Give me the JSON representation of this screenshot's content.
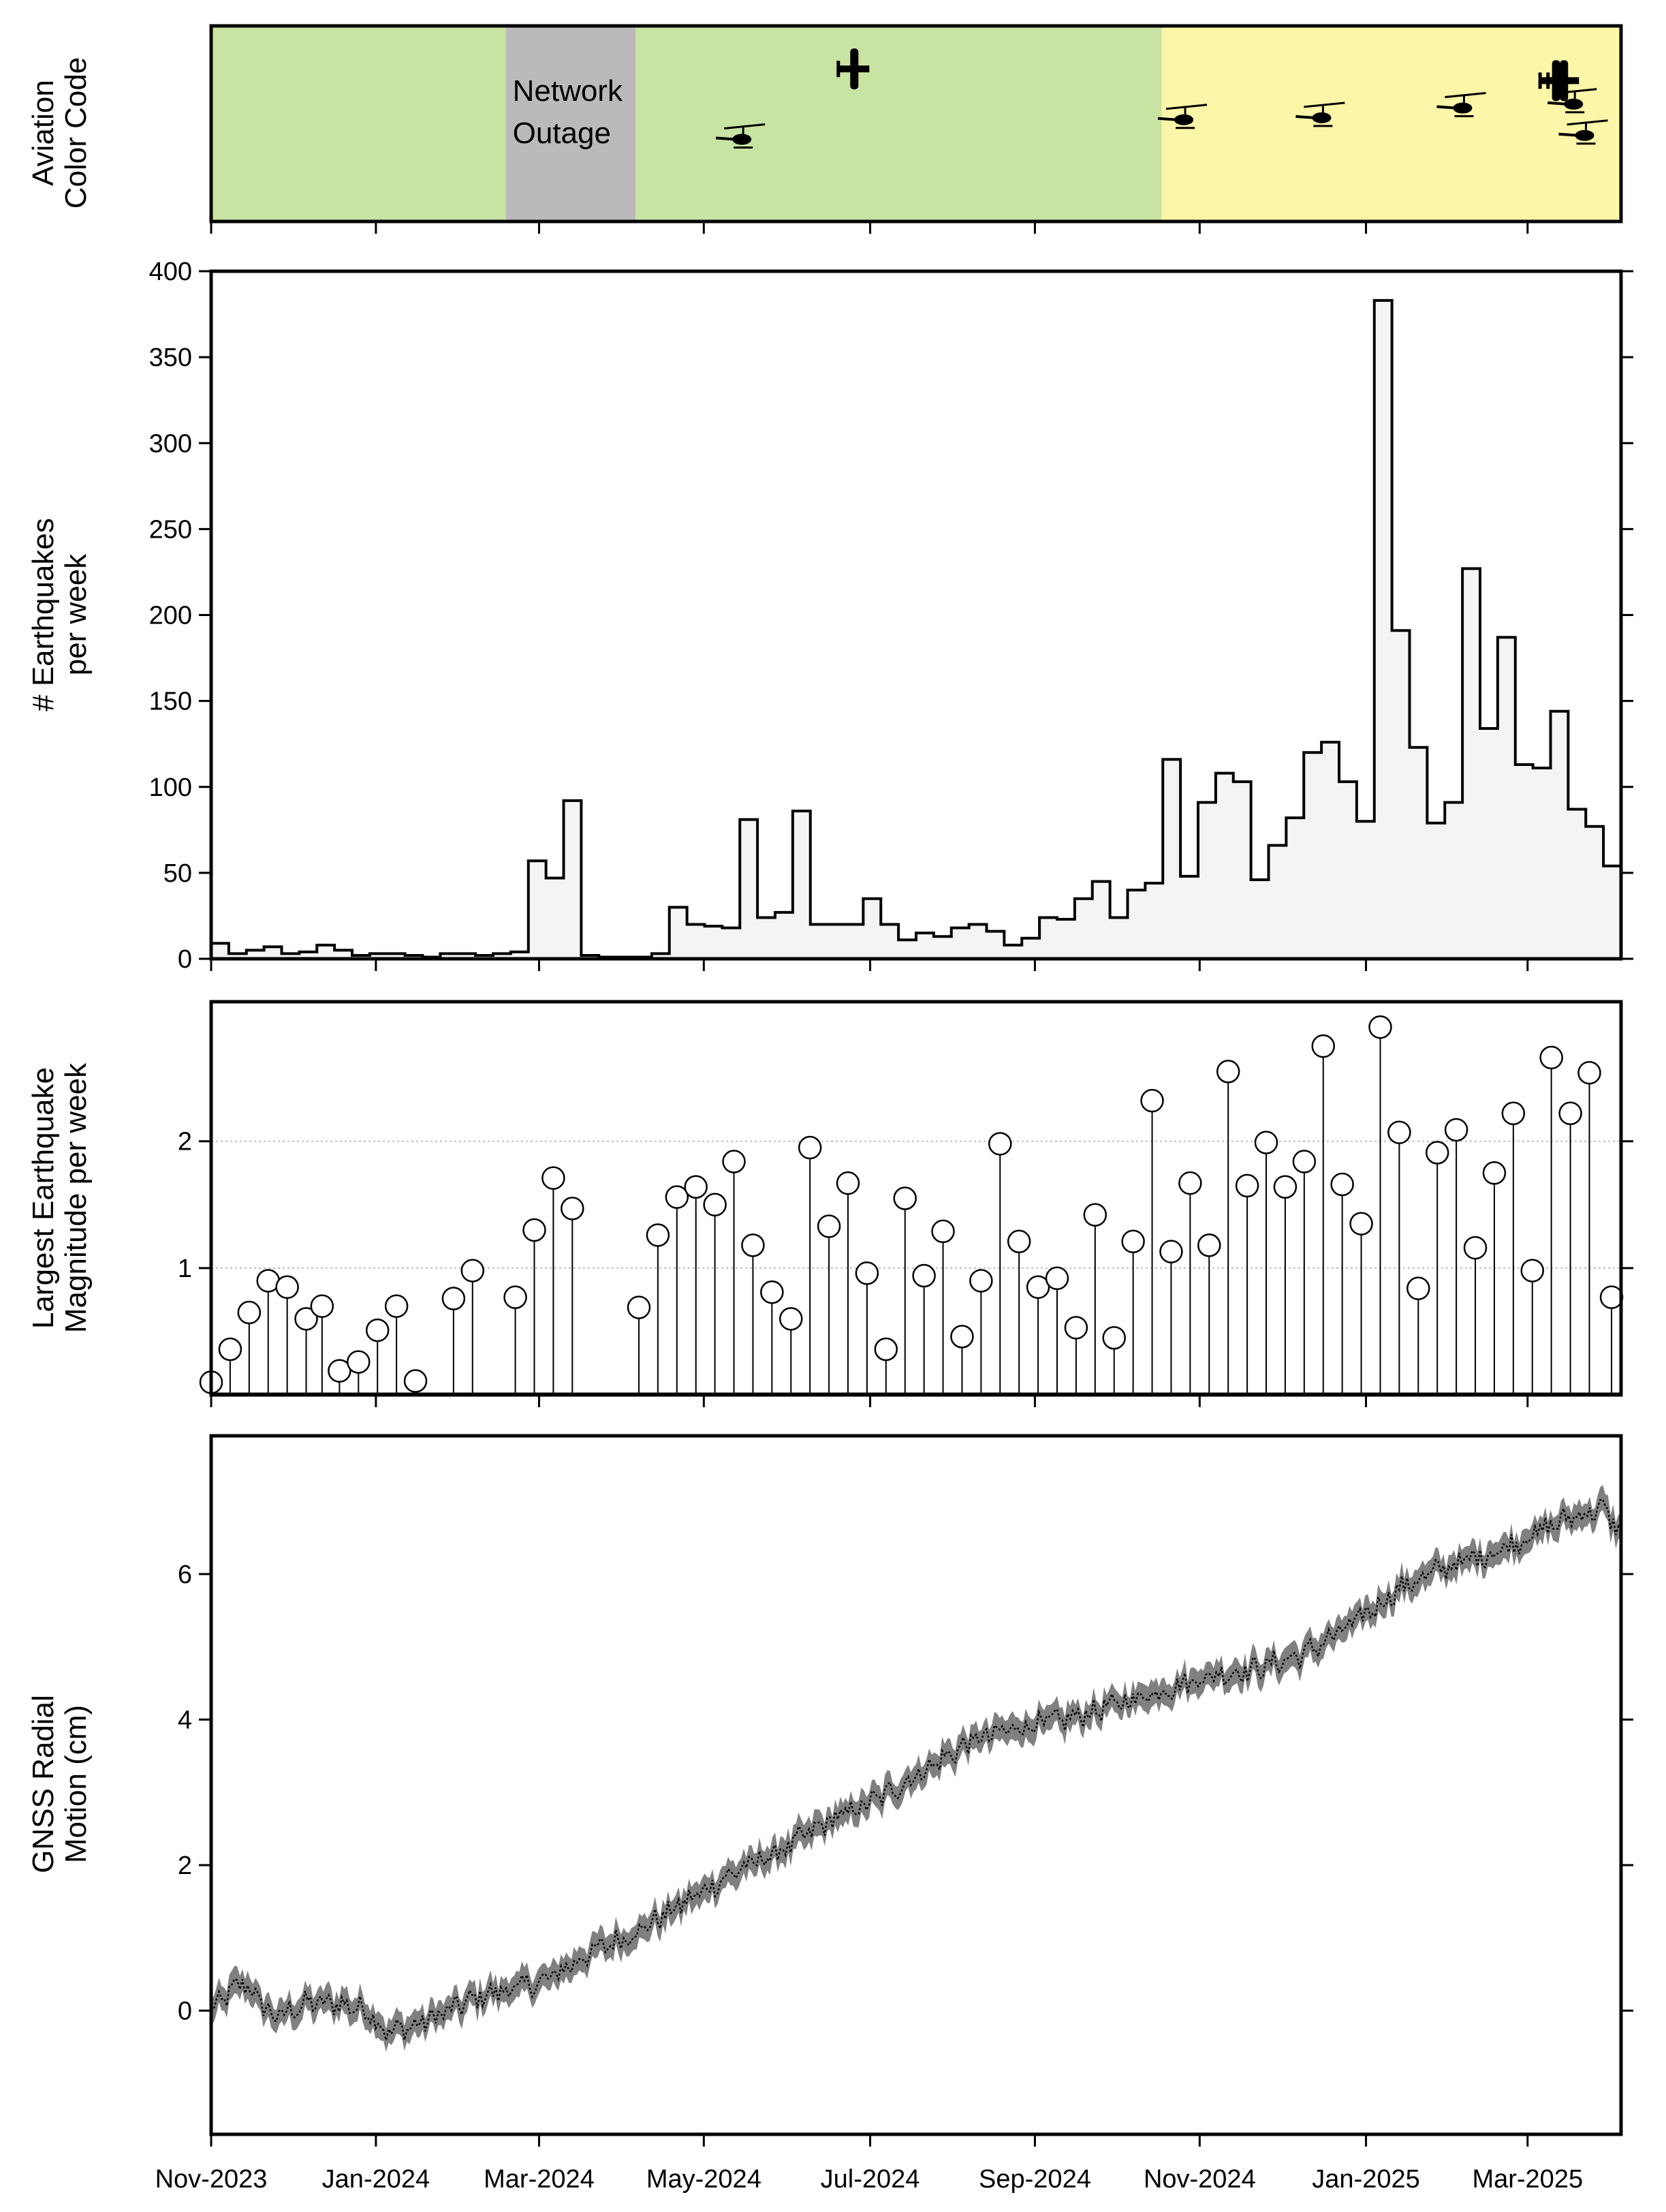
{
  "chart_data": [
    {
      "type": "timeline",
      "title": "",
      "ylabel": "Aviation Color Code",
      "bands": [
        {
          "start": 0,
          "end": 18.6,
          "color": "#c8e3a2",
          "label": ""
        },
        {
          "start": 18.6,
          "end": 26.8,
          "color": "#bbb9bb",
          "label": "Network Outage"
        },
        {
          "start": 26.8,
          "end": 60.0,
          "color": "#c8e3a2",
          "label": ""
        },
        {
          "start": 60.0,
          "end": 89.0,
          "color": "#fbf6a8",
          "label": ""
        }
      ],
      "band_label_lines": [
        "Network",
        "Outage"
      ],
      "flights": [
        {
          "week": 33.5,
          "level": 0.42,
          "kind": "helicopter-icon"
        },
        {
          "week": 40.6,
          "level": 0.78,
          "kind": "airplane-icon"
        },
        {
          "week": 61.4,
          "level": 0.52,
          "kind": "helicopter-icon"
        },
        {
          "week": 70.1,
          "level": 0.53,
          "kind": "helicopter-icon"
        },
        {
          "week": 79.0,
          "level": 0.58,
          "kind": "helicopter-icon"
        },
        {
          "week": 84.9,
          "level": 0.72,
          "kind": "airplane-icon"
        },
        {
          "week": 85.4,
          "level": 0.72,
          "kind": "airplane-icon"
        },
        {
          "week": 86.0,
          "level": 0.6,
          "kind": "helicopter-icon"
        },
        {
          "week": 86.7,
          "level": 0.44,
          "kind": "helicopter-icon"
        }
      ]
    },
    {
      "type": "step",
      "ylabel_lines": [
        "# Earthquakes",
        "per week"
      ],
      "ylim": [
        0,
        400
      ],
      "yticks": [
        0,
        50,
        100,
        150,
        200,
        250,
        300,
        350,
        400
      ],
      "week_counts": [
        9,
        3,
        5,
        7,
        3,
        4,
        8,
        5,
        2,
        3,
        3,
        2,
        1,
        3,
        3,
        2,
        3,
        4,
        57,
        47,
        92,
        2,
        1,
        1,
        1,
        3,
        30,
        20,
        19,
        18,
        81,
        24,
        27,
        86,
        20,
        20,
        20,
        35,
        20,
        11,
        15,
        13,
        18,
        20,
        16,
        8,
        12,
        24,
        23,
        35,
        45,
        24,
        40,
        44,
        116,
        48,
        91,
        108,
        103,
        46,
        66,
        82,
        120,
        126,
        103,
        80,
        383,
        191,
        123,
        79,
        91,
        227,
        134,
        187,
        113,
        111,
        144,
        87,
        77,
        54
      ]
    },
    {
      "type": "stem",
      "ylabel_lines": [
        "Largest Earthquake",
        "Magnitude per week"
      ],
      "ylim": [
        0,
        3.1
      ],
      "yticks": [
        1,
        2
      ],
      "points": [
        {
          "week": 0.0,
          "mag": 0.1
        },
        {
          "week": 1.2,
          "mag": 0.36
        },
        {
          "week": 2.4,
          "mag": 0.65
        },
        {
          "week": 3.6,
          "mag": 0.9
        },
        {
          "week": 4.8,
          "mag": 0.85
        },
        {
          "week": 6.0,
          "mag": 0.6
        },
        {
          "week": 7.0,
          "mag": 0.7
        },
        {
          "week": 8.1,
          "mag": 0.19
        },
        {
          "week": 9.3,
          "mag": 0.26
        },
        {
          "week": 10.5,
          "mag": 0.51
        },
        {
          "week": 11.7,
          "mag": 0.7
        },
        {
          "week": 12.9,
          "mag": 0.11
        },
        {
          "week": 15.3,
          "mag": 0.76
        },
        {
          "week": 16.5,
          "mag": 0.98
        },
        {
          "week": 19.2,
          "mag": 0.77
        },
        {
          "week": 20.4,
          "mag": 1.3
        },
        {
          "week": 21.6,
          "mag": 1.71
        },
        {
          "week": 22.8,
          "mag": 1.47
        },
        {
          "week": 27.0,
          "mag": 0.69
        },
        {
          "week": 28.2,
          "mag": 1.26
        },
        {
          "week": 29.4,
          "mag": 1.56
        },
        {
          "week": 30.6,
          "mag": 1.64
        },
        {
          "week": 31.8,
          "mag": 1.5
        },
        {
          "week": 33.0,
          "mag": 1.84
        },
        {
          "week": 34.2,
          "mag": 1.18
        },
        {
          "week": 35.4,
          "mag": 0.81
        },
        {
          "week": 36.6,
          "mag": 0.6
        },
        {
          "week": 37.8,
          "mag": 1.95
        },
        {
          "week": 39.0,
          "mag": 1.33
        },
        {
          "week": 40.2,
          "mag": 1.67
        },
        {
          "week": 41.4,
          "mag": 0.96
        },
        {
          "week": 42.6,
          "mag": 0.36
        },
        {
          "week": 43.8,
          "mag": 1.55
        },
        {
          "week": 45.0,
          "mag": 0.94
        },
        {
          "week": 46.2,
          "mag": 1.29
        },
        {
          "week": 47.4,
          "mag": 0.46
        },
        {
          "week": 48.6,
          "mag": 0.9
        },
        {
          "week": 49.8,
          "mag": 1.98
        },
        {
          "week": 51.0,
          "mag": 1.21
        },
        {
          "week": 52.2,
          "mag": 0.85
        },
        {
          "week": 53.4,
          "mag": 0.92
        },
        {
          "week": 54.6,
          "mag": 0.53
        },
        {
          "week": 55.8,
          "mag": 1.42
        },
        {
          "week": 57.0,
          "mag": 0.45
        },
        {
          "week": 58.2,
          "mag": 1.21
        },
        {
          "week": 59.4,
          "mag": 2.32
        },
        {
          "week": 60.6,
          "mag": 1.13
        },
        {
          "week": 61.8,
          "mag": 1.67
        },
        {
          "week": 63.0,
          "mag": 1.18
        },
        {
          "week": 64.2,
          "mag": 2.55
        },
        {
          "week": 65.4,
          "mag": 1.65
        },
        {
          "week": 66.6,
          "mag": 1.99
        },
        {
          "week": 67.8,
          "mag": 1.64
        },
        {
          "week": 69.0,
          "mag": 1.84
        },
        {
          "week": 70.2,
          "mag": 2.75
        },
        {
          "week": 71.4,
          "mag": 1.66
        },
        {
          "week": 72.6,
          "mag": 1.35
        },
        {
          "week": 73.8,
          "mag": 2.9
        },
        {
          "week": 75.0,
          "mag": 2.07
        },
        {
          "week": 76.2,
          "mag": 0.84
        },
        {
          "week": 77.4,
          "mag": 1.91
        },
        {
          "week": 78.6,
          "mag": 2.09
        },
        {
          "week": 79.8,
          "mag": 1.16
        },
        {
          "week": 81.0,
          "mag": 1.75
        },
        {
          "week": 82.2,
          "mag": 2.22
        },
        {
          "week": 83.4,
          "mag": 0.98
        },
        {
          "week": 84.6,
          "mag": 2.66
        },
        {
          "week": 85.8,
          "mag": 2.22
        },
        {
          "week": 87.0,
          "mag": 2.54
        },
        {
          "week": 88.4,
          "mag": 0.77
        }
      ]
    },
    {
      "type": "line",
      "ylabel_lines": [
        "GNSS Radial",
        "Motion (cm)"
      ],
      "ylim": [
        -1.7,
        7.9
      ],
      "yticks": [
        0,
        2,
        4,
        6
      ],
      "uncertainty_band": true,
      "anchors": [
        [
          0,
          0.0
        ],
        [
          2,
          0.4
        ],
        [
          4,
          -0.1
        ],
        [
          6,
          0.1
        ],
        [
          8,
          0.1
        ],
        [
          10,
          0.0
        ],
        [
          11,
          -0.3
        ],
        [
          13,
          -0.2
        ],
        [
          15,
          0.0
        ],
        [
          17,
          0.2
        ],
        [
          19,
          0.3
        ],
        [
          21,
          0.4
        ],
        [
          24,
          0.8
        ],
        [
          27,
          1.1
        ],
        [
          30,
          1.5
        ],
        [
          33,
          1.9
        ],
        [
          36,
          2.2
        ],
        [
          39,
          2.6
        ],
        [
          42,
          2.9
        ],
        [
          45,
          3.3
        ],
        [
          48,
          3.7
        ],
        [
          51,
          3.9
        ],
        [
          54,
          4.0
        ],
        [
          57,
          4.2
        ],
        [
          60,
          4.4
        ],
        [
          63,
          4.6
        ],
        [
          66,
          4.7
        ],
        [
          69,
          4.9
        ],
        [
          72,
          5.3
        ],
        [
          75,
          5.8
        ],
        [
          78,
          6.1
        ],
        [
          81,
          6.3
        ],
        [
          84,
          6.6
        ],
        [
          86,
          6.8
        ],
        [
          88,
          6.9
        ],
        [
          89,
          6.5
        ]
      ]
    }
  ],
  "x_axis": {
    "range_weeks": [
      0,
      89
    ],
    "tick_labels": [
      "Nov-2023",
      "Jan-2024",
      "Mar-2024",
      "May-2024",
      "Jul-2024",
      "Sep-2024",
      "Nov-2024",
      "Jan-2025",
      "Mar-2025"
    ],
    "tick_weeks": [
      0,
      10.4,
      20.7,
      31.1,
      41.6,
      52.0,
      62.4,
      72.9,
      83.1
    ]
  },
  "colors": {
    "green": "#c8e3a2",
    "gray": "#bbb9bb",
    "yellow": "#fbf6a8",
    "fill": "#f4f4f4",
    "band": "#808080"
  }
}
